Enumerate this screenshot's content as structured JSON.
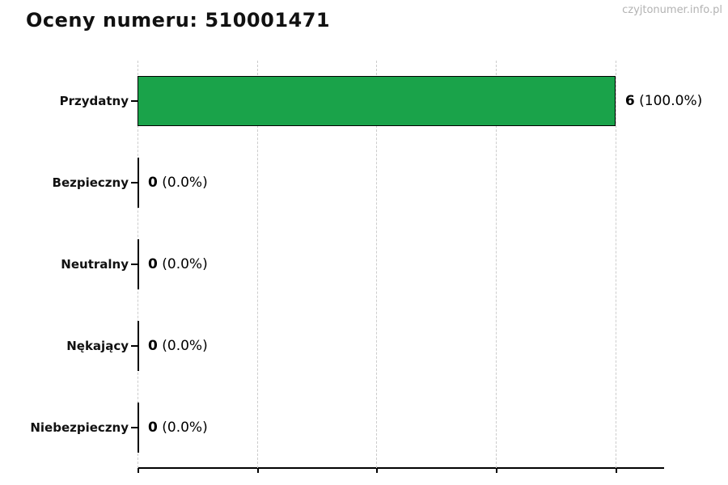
{
  "header": {
    "title": "Oceny numeru: 510001471",
    "watermark": "czyjtonumer.info.pl"
  },
  "chart_data": {
    "type": "bar",
    "orientation": "horizontal",
    "title": "Oceny numeru: 510001471",
    "categories": [
      "Przydatny",
      "Bezpieczny",
      "Neutralny",
      "Nękający",
      "Niebezpieczny"
    ],
    "values": [
      6,
      0,
      0,
      0,
      0
    ],
    "percent_labels": [
      "100.0%",
      "0.0%",
      "0.0%",
      "0.0%",
      "0.0%"
    ],
    "value_label_format": "value (percent)",
    "xlabel": "",
    "ylabel": "",
    "xlim": [
      0,
      6.6
    ],
    "x_gridlines": [
      0,
      1.5,
      3,
      4.5,
      6
    ],
    "x_tick_labels_visible": false,
    "grid": "vertical-dashed",
    "legend": "none",
    "bar_color": "#1aa34a",
    "bar_edge_color": "#000000",
    "grid_color": "#cccccc",
    "watermark_color": "#b3b3b3"
  }
}
